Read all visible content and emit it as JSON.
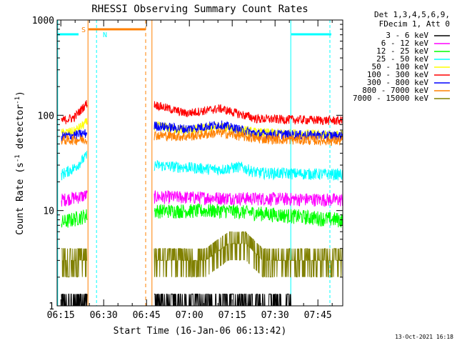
{
  "chart_data": {
    "type": "line",
    "title": "RHESSI Observing Summary Count Rates",
    "xlabel": "Start Time (16-Jan-06 06:13:42)",
    "ylabel_main": "Count Rate (s",
    "ylabel_sup1": "-1",
    "ylabel_mid": " detector",
    "ylabel_sup2": "-1",
    "ylabel_end": ")",
    "yscale": "log",
    "ylim": [
      1,
      1000
    ],
    "xlim_minutes": [
      0,
      100
    ],
    "x_ticks": [
      "06:15",
      "06:30",
      "06:45",
      "07:00",
      "07:15",
      "07:30",
      "07:45"
    ],
    "y_ticks": [
      "1",
      "10",
      "100",
      "1000"
    ],
    "legend_header": [
      "Det 1,3,4,5,6,9,",
      "FDecim 1, Att 0"
    ],
    "timestamp": "13-Oct-2021 16:18",
    "flags": {
      "saa": "S",
      "night": "N"
    },
    "series": [
      {
        "name": "3 - 6 keV",
        "color": "#000000",
        "segments": [
          [
            [
              1.5,
              1.0
            ],
            [
              10.5,
              1.0
            ]
          ],
          [
            [
              34,
              1.0
            ],
            [
              82,
              1.0
            ]
          ]
        ]
      },
      {
        "name": "6 - 12 keV",
        "color": "#ff00ff",
        "segments": [
          [
            [
              1.5,
              13
            ],
            [
              10.5,
              14.5
            ]
          ],
          [
            [
              34,
              14
            ],
            [
              100,
              13
            ]
          ]
        ]
      },
      {
        "name": "12 - 25 keV",
        "color": "#00ff00",
        "segments": [
          [
            [
              1.5,
              7.5
            ],
            [
              10.5,
              9
            ]
          ],
          [
            [
              34,
              10
            ],
            [
              60,
              10
            ],
            [
              100,
              8
            ]
          ]
        ]
      },
      {
        "name": "25 - 50 keV",
        "color": "#00ffff",
        "segments": [
          [
            [
              1.5,
              24
            ],
            [
              6,
              28
            ],
            [
              10.5,
              38
            ]
          ],
          [
            [
              34,
              30
            ],
            [
              57,
              27
            ],
            [
              64,
              29
            ],
            [
              70,
              25
            ],
            [
              100,
              24
            ]
          ]
        ]
      },
      {
        "name": "50 - 100 keV",
        "color": "#ffff00",
        "segments": [
          [
            [
              1.5,
              65
            ],
            [
              6,
              68
            ],
            [
              10.5,
              85
            ]
          ],
          [
            [
              34,
              78
            ],
            [
              45,
              70
            ],
            [
              57,
              76
            ],
            [
              70,
              66
            ],
            [
              100,
              62
            ]
          ]
        ]
      },
      {
        "name": "100 - 300 keV",
        "color": "#ff0000",
        "segments": [
          [
            [
              1.5,
              88
            ],
            [
              6,
              95
            ],
            [
              10.5,
              135
            ]
          ],
          [
            [
              34,
              130
            ],
            [
              45,
              105
            ],
            [
              57,
              118
            ],
            [
              70,
              92
            ],
            [
              100,
              88
            ]
          ]
        ]
      },
      {
        "name": "300 - 800 keV",
        "color": "#0000ff",
        "segments": [
          [
            [
              1.5,
              60
            ],
            [
              6,
              62
            ],
            [
              10.5,
              65
            ]
          ],
          [
            [
              34,
              78
            ],
            [
              45,
              72
            ],
            [
              57,
              80
            ],
            [
              70,
              64
            ],
            [
              100,
              61
            ]
          ]
        ]
      },
      {
        "name": "800 - 7000 keV",
        "color": "#ff8000",
        "segments": [
          [
            [
              1.5,
              55
            ],
            [
              10.5,
              56
            ]
          ],
          [
            [
              34,
              62
            ],
            [
              45,
              60
            ],
            [
              57,
              66
            ],
            [
              70,
              57
            ],
            [
              100,
              54
            ]
          ]
        ]
      },
      {
        "name": "7000 - 15000 keV",
        "color": "#808000",
        "segments": [
          [
            [
              1.5,
              3.0
            ],
            [
              10.5,
              3.0
            ]
          ],
          [
            [
              34,
              3.0
            ],
            [
              52,
              3.0
            ],
            [
              60,
              4.5
            ],
            [
              66,
              4.5
            ],
            [
              72,
              3.0
            ],
            [
              100,
              3.0
            ]
          ]
        ]
      }
    ]
  }
}
